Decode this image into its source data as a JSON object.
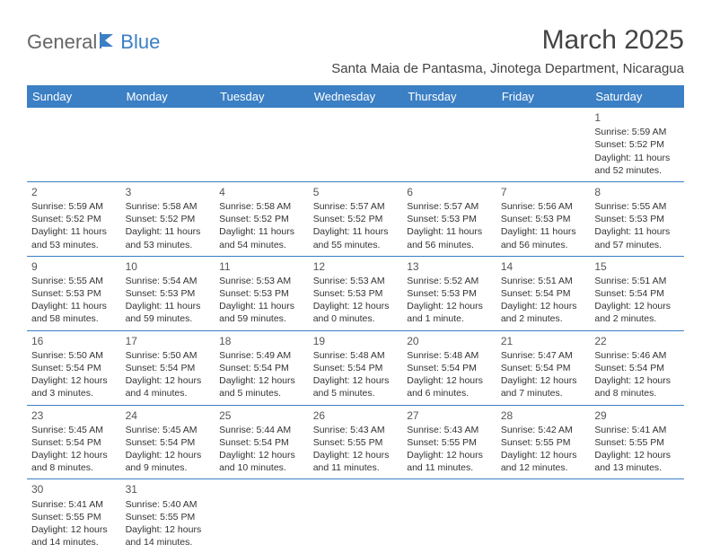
{
  "logo": {
    "part1": "General",
    "part2": "Blue"
  },
  "title": "March 2025",
  "location": "Santa Maia de Pantasma, Jinotega Department, Nicaragua",
  "colors": {
    "header_bg": "#3b7fc4",
    "header_fg": "#ffffff",
    "rule": "#3b7fc4"
  },
  "weekdays": [
    "Sunday",
    "Monday",
    "Tuesday",
    "Wednesday",
    "Thursday",
    "Friday",
    "Saturday"
  ],
  "weeks": [
    [
      null,
      null,
      null,
      null,
      null,
      null,
      {
        "d": "1",
        "sr": "5:59 AM",
        "ss": "5:52 PM",
        "dl": "11 hours and 52 minutes."
      }
    ],
    [
      {
        "d": "2",
        "sr": "5:59 AM",
        "ss": "5:52 PM",
        "dl": "11 hours and 53 minutes."
      },
      {
        "d": "3",
        "sr": "5:58 AM",
        "ss": "5:52 PM",
        "dl": "11 hours and 53 minutes."
      },
      {
        "d": "4",
        "sr": "5:58 AM",
        "ss": "5:52 PM",
        "dl": "11 hours and 54 minutes."
      },
      {
        "d": "5",
        "sr": "5:57 AM",
        "ss": "5:52 PM",
        "dl": "11 hours and 55 minutes."
      },
      {
        "d": "6",
        "sr": "5:57 AM",
        "ss": "5:53 PM",
        "dl": "11 hours and 56 minutes."
      },
      {
        "d": "7",
        "sr": "5:56 AM",
        "ss": "5:53 PM",
        "dl": "11 hours and 56 minutes."
      },
      {
        "d": "8",
        "sr": "5:55 AM",
        "ss": "5:53 PM",
        "dl": "11 hours and 57 minutes."
      }
    ],
    [
      {
        "d": "9",
        "sr": "5:55 AM",
        "ss": "5:53 PM",
        "dl": "11 hours and 58 minutes."
      },
      {
        "d": "10",
        "sr": "5:54 AM",
        "ss": "5:53 PM",
        "dl": "11 hours and 59 minutes."
      },
      {
        "d": "11",
        "sr": "5:53 AM",
        "ss": "5:53 PM",
        "dl": "11 hours and 59 minutes."
      },
      {
        "d": "12",
        "sr": "5:53 AM",
        "ss": "5:53 PM",
        "dl": "12 hours and 0 minutes."
      },
      {
        "d": "13",
        "sr": "5:52 AM",
        "ss": "5:53 PM",
        "dl": "12 hours and 1 minute."
      },
      {
        "d": "14",
        "sr": "5:51 AM",
        "ss": "5:54 PM",
        "dl": "12 hours and 2 minutes."
      },
      {
        "d": "15",
        "sr": "5:51 AM",
        "ss": "5:54 PM",
        "dl": "12 hours and 2 minutes."
      }
    ],
    [
      {
        "d": "16",
        "sr": "5:50 AM",
        "ss": "5:54 PM",
        "dl": "12 hours and 3 minutes."
      },
      {
        "d": "17",
        "sr": "5:50 AM",
        "ss": "5:54 PM",
        "dl": "12 hours and 4 minutes."
      },
      {
        "d": "18",
        "sr": "5:49 AM",
        "ss": "5:54 PM",
        "dl": "12 hours and 5 minutes."
      },
      {
        "d": "19",
        "sr": "5:48 AM",
        "ss": "5:54 PM",
        "dl": "12 hours and 5 minutes."
      },
      {
        "d": "20",
        "sr": "5:48 AM",
        "ss": "5:54 PM",
        "dl": "12 hours and 6 minutes."
      },
      {
        "d": "21",
        "sr": "5:47 AM",
        "ss": "5:54 PM",
        "dl": "12 hours and 7 minutes."
      },
      {
        "d": "22",
        "sr": "5:46 AM",
        "ss": "5:54 PM",
        "dl": "12 hours and 8 minutes."
      }
    ],
    [
      {
        "d": "23",
        "sr": "5:45 AM",
        "ss": "5:54 PM",
        "dl": "12 hours and 8 minutes."
      },
      {
        "d": "24",
        "sr": "5:45 AM",
        "ss": "5:54 PM",
        "dl": "12 hours and 9 minutes."
      },
      {
        "d": "25",
        "sr": "5:44 AM",
        "ss": "5:54 PM",
        "dl": "12 hours and 10 minutes."
      },
      {
        "d": "26",
        "sr": "5:43 AM",
        "ss": "5:55 PM",
        "dl": "12 hours and 11 minutes."
      },
      {
        "d": "27",
        "sr": "5:43 AM",
        "ss": "5:55 PM",
        "dl": "12 hours and 11 minutes."
      },
      {
        "d": "28",
        "sr": "5:42 AM",
        "ss": "5:55 PM",
        "dl": "12 hours and 12 minutes."
      },
      {
        "d": "29",
        "sr": "5:41 AM",
        "ss": "5:55 PM",
        "dl": "12 hours and 13 minutes."
      }
    ],
    [
      {
        "d": "30",
        "sr": "5:41 AM",
        "ss": "5:55 PM",
        "dl": "12 hours and 14 minutes."
      },
      {
        "d": "31",
        "sr": "5:40 AM",
        "ss": "5:55 PM",
        "dl": "12 hours and 14 minutes."
      },
      null,
      null,
      null,
      null,
      null
    ]
  ],
  "labels": {
    "sunrise": "Sunrise: ",
    "sunset": "Sunset: ",
    "daylight": "Daylight: "
  }
}
